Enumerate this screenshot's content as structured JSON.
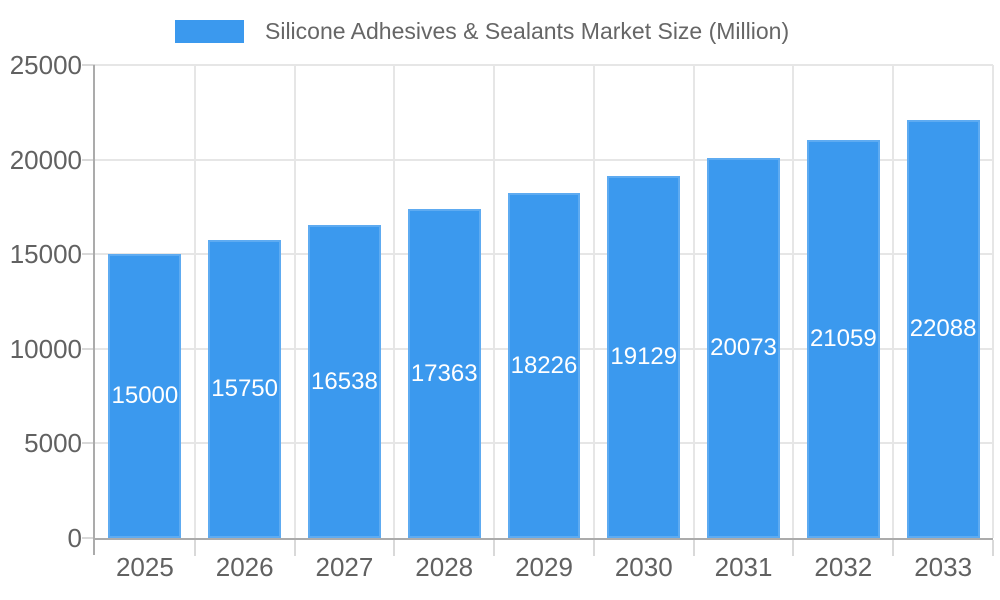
{
  "chart_data": {
    "type": "bar",
    "title": "Silicone Adhesives & Sealants Market Size (Million)",
    "legend_position": "top",
    "categories": [
      "2025",
      "2026",
      "2027",
      "2028",
      "2029",
      "2030",
      "2031",
      "2032",
      "2033"
    ],
    "series": [
      {
        "name": "Silicone Adhesives & Sealants Market Size (Million)",
        "values": [
          15000,
          15750,
          16538,
          17363,
          18226,
          19129,
          20073,
          21059,
          22088
        ]
      }
    ],
    "xlabel": "",
    "ylabel": "",
    "ylim": [
      0,
      25000
    ],
    "y_ticks": [
      0,
      5000,
      10000,
      15000,
      20000,
      25000
    ],
    "grid": true,
    "bar_labels_visible": true,
    "bar_label_position": "inside-center",
    "colors": {
      "bar": "#3B99EE",
      "bar_label": "#FFFFFF",
      "grid": "#E6E6E6",
      "axis_line": "#ABABAB",
      "tick": "#D9D9D9",
      "axis_text": "#616161",
      "legend_text": "#666666",
      "background": "#FFFFFF"
    }
  }
}
